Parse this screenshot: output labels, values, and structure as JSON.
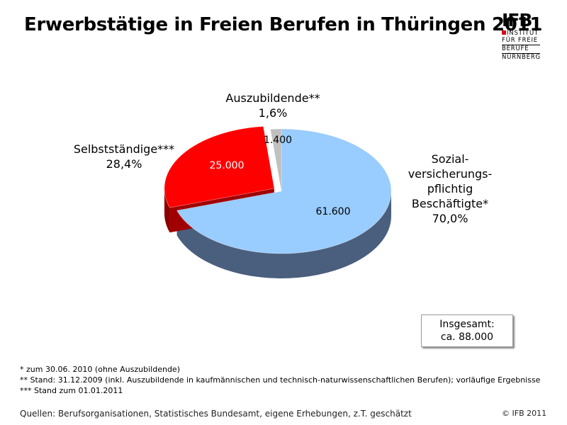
{
  "title": "Erwerbstätige in Freien Berufen in Thüringen 2011",
  "logo": {
    "mark": "IFB",
    "lines": [
      "INSTITUT",
      "FÜR FREIE",
      "BERUFE",
      "NÜRNBERG"
    ]
  },
  "chart_data": {
    "type": "pie",
    "title": "Erwerbstätige in Freien Berufen in Thüringen 2011",
    "slices": [
      {
        "name": "Sozial-versicherungs-pflichtig Beschäftigte*",
        "label_lines": [
          "Sozial-",
          "versicherungs-",
          "pflichtig",
          "Beschäftigte*"
        ],
        "value": 61600,
        "value_label": "61.600",
        "percent_label": "70,0%",
        "color": "#99ccff",
        "side_color": "#4a5f7d"
      },
      {
        "name": "Selbstständige***",
        "label_lines": [
          "Selbstständige***"
        ],
        "value": 25000,
        "value_label": "25.000",
        "percent_label": "28,4%",
        "color": "#ff0000",
        "side_color": "#8b0000",
        "exploded": true
      },
      {
        "name": "Auszubildende**",
        "label_lines": [
          "Auszubildende**"
        ],
        "value": 1400,
        "value_label": "1.400",
        "percent_label": "1,6%",
        "color": "#c0c0c0",
        "side_color": "#808080"
      }
    ]
  },
  "total": {
    "line1": "Insgesamt:",
    "line2": "ca. 88.000"
  },
  "notes": [
    "* zum 30.06. 2010 (ohne Auszubildende)",
    "** Stand: 31.12.2009 (inkl. Auszubildende in kaufmännischen und technisch-naturwissenschaftlichen Berufen); vorläufige Ergebnisse",
    "*** Stand zum 01.01.2011"
  ],
  "source": "Quellen: Berufsorganisationen, Statistisches Bundesamt, eigene Erhebungen, z.T. geschätzt",
  "copyright": "© IFB 2011"
}
